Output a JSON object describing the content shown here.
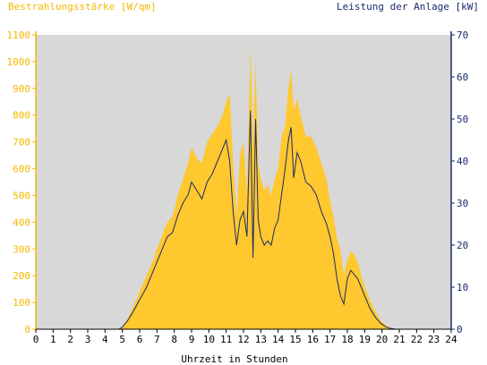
{
  "chart_data": {
    "type": "area",
    "title_left": "Bestrahlungsstärke [W/qm]",
    "title_right": "Leistung der Anlage [kW]",
    "xlabel": "Uhrzeit in Stunden",
    "xlim": [
      0,
      24
    ],
    "ylim_left": [
      0,
      1100
    ],
    "ylim_right": [
      0,
      70
    ],
    "x_ticks": [
      "0",
      "1",
      "2",
      "3",
      "4",
      "5",
      "6",
      "7",
      "8",
      "9",
      "10",
      "11",
      "12",
      "13",
      "14",
      "15",
      "16",
      "17",
      "18",
      "19",
      "20",
      "21",
      "22",
      "23",
      "24"
    ],
    "y_left_ticks": [
      "0",
      "100",
      "200",
      "300",
      "400",
      "500",
      "600",
      "700",
      "800",
      "900",
      "1000",
      "1100"
    ],
    "y_right_ticks": [
      "0",
      "10",
      "20",
      "30",
      "40",
      "50",
      "60",
      "70"
    ],
    "grid": false,
    "colors": {
      "plot_bg": "#d8d8d8",
      "irradiance": "#ffc82e",
      "power": "#1a2a6c",
      "left_axis": "#f5b800",
      "right_axis": "#1a2a6c"
    },
    "series": [
      {
        "axis": "left",
        "x": [
          0,
          4.8,
          5.0,
          5.3,
          5.6,
          6.0,
          6.4,
          6.8,
          7.0,
          7.3,
          7.6,
          7.9,
          8.2,
          8.5,
          8.8,
          9.0,
          9.3,
          9.6,
          9.9,
          10.2,
          10.5,
          10.8,
          11.0,
          11.2,
          11.4,
          11.6,
          11.8,
          12.0,
          12.2,
          12.4,
          12.55,
          12.7,
          12.85,
          13.0,
          13.2,
          13.4,
          13.6,
          13.8,
          14.0,
          14.2,
          14.4,
          14.6,
          14.75,
          14.9,
          15.1,
          15.3,
          15.6,
          15.9,
          16.2,
          16.5,
          16.8,
          17.0,
          17.2,
          17.4,
          17.6,
          17.8,
          18.0,
          18.2,
          18.4,
          18.6,
          18.8,
          19.0,
          19.3,
          19.6,
          19.9,
          20.2,
          20.5,
          20.8,
          21.0,
          24
        ],
        "y": [
          0,
          0,
          10,
          40,
          80,
          140,
          200,
          260,
          300,
          350,
          400,
          420,
          500,
          560,
          620,
          680,
          640,
          620,
          700,
          730,
          760,
          800,
          850,
          880,
          620,
          420,
          650,
          700,
          500,
          1060,
          700,
          1000,
          620,
          560,
          520,
          540,
          500,
          560,
          600,
          720,
          760,
          900,
          970,
          820,
          860,
          800,
          720,
          720,
          680,
          620,
          560,
          480,
          420,
          340,
          300,
          200,
          260,
          290,
          280,
          250,
          200,
          160,
          110,
          70,
          35,
          15,
          5,
          1,
          0,
          0
        ]
      },
      {
        "axis": "right",
        "x": [
          0,
          4.8,
          5.0,
          5.3,
          5.6,
          6.0,
          6.4,
          6.8,
          7.0,
          7.3,
          7.6,
          7.9,
          8.2,
          8.5,
          8.8,
          9.0,
          9.3,
          9.6,
          9.9,
          10.2,
          10.5,
          10.8,
          11.0,
          11.2,
          11.4,
          11.6,
          11.8,
          12.0,
          12.2,
          12.4,
          12.55,
          12.7,
          12.85,
          13.0,
          13.2,
          13.4,
          13.6,
          13.8,
          14.0,
          14.2,
          14.4,
          14.6,
          14.75,
          14.9,
          15.1,
          15.3,
          15.6,
          15.9,
          16.2,
          16.5,
          16.8,
          17.0,
          17.2,
          17.4,
          17.6,
          17.8,
          18.0,
          18.2,
          18.4,
          18.6,
          18.8,
          19.0,
          19.3,
          19.6,
          19.9,
          20.2,
          20.5,
          20.8,
          21.0,
          24
        ],
        "y": [
          0,
          0,
          0.5,
          2,
          4,
          7,
          10,
          14,
          16,
          19,
          22,
          23,
          27,
          30,
          32,
          35,
          33,
          31,
          35,
          37,
          40,
          43,
          45,
          40,
          28,
          20,
          26,
          28,
          22,
          52,
          17,
          50,
          26,
          22,
          20,
          21,
          20,
          24,
          26,
          32,
          38,
          45,
          48,
          36,
          42,
          40,
          35,
          34,
          32,
          28,
          25,
          22,
          18,
          12,
          8,
          6,
          12,
          14,
          13,
          12,
          10,
          8,
          5,
          3,
          1.5,
          0.6,
          0.2,
          0,
          0,
          0
        ]
      }
    ]
  }
}
